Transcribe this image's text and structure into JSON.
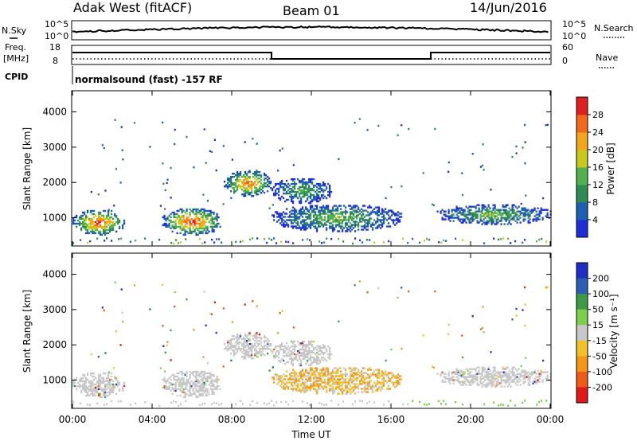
{
  "header": {
    "station": "Adak West (fitACF)",
    "beam": "Beam 01",
    "date": "14/Jun/2016"
  },
  "top_panel": {
    "left_label": "N.Sky",
    "right_label": "N.Search",
    "ticks": [
      "10^5",
      "10^0"
    ]
  },
  "freq_panel": {
    "left_label_1": "Freq.",
    "left_label_2": "[MHz]",
    "left_ticks": [
      "18",
      "8"
    ],
    "right_label": "Nave",
    "right_ticks": [
      "60",
      "0"
    ],
    "cpid_label": "CPID",
    "cpid_text": "normalsound (fast) -157 RF"
  },
  "colors": {
    "power": [
      "#1f2fd6",
      "#1d5fb0",
      "#2f8a55",
      "#53b04f",
      "#c9c81f",
      "#f2a51f",
      "#ef6a1d",
      "#e02020"
    ],
    "velocity": [
      "#e01818",
      "#ef5a16",
      "#f4961c",
      "#f2c12a",
      "#c8c8c8",
      "#7ccf48",
      "#3d9a47",
      "#2c5fb3",
      "#1f2fc6"
    ]
  },
  "chart_data": [
    {
      "type": "heatmap",
      "title": "Power",
      "ylabel": "Slant Range [km]",
      "ylim": [
        200,
        4600
      ],
      "yticks": [
        "1000",
        "2000",
        "3000",
        "4000"
      ],
      "xticks": [
        "00:00",
        "04:00",
        "08:00",
        "12:00",
        "16:00",
        "20:00",
        "00:00"
      ],
      "colorbar": {
        "label": "Power [dB]",
        "ticks": [
          "4",
          "8",
          "12",
          "16",
          "20",
          "24",
          "28"
        ]
      },
      "echo_regions": [
        {
          "t": [
            0.0,
            2.6
          ],
          "range": [
            500,
            1200
          ],
          "peak_db": 30
        },
        {
          "t": [
            4.5,
            7.5
          ],
          "range": [
            500,
            1250
          ],
          "peak_db": 30
        },
        {
          "t": [
            7.6,
            10.0
          ],
          "range": [
            1600,
            2300
          ],
          "peak_db": 28
        },
        {
          "t": [
            10.0,
            13.0
          ],
          "range": [
            1400,
            2100
          ],
          "peak_db": 14
        },
        {
          "t": [
            10.0,
            16.5
          ],
          "range": [
            600,
            1350
          ],
          "peak_db": 16
        },
        {
          "t": [
            18.3,
            24.0
          ],
          "range": [
            800,
            1350
          ],
          "peak_db": 16
        }
      ]
    },
    {
      "type": "heatmap",
      "title": "Velocity",
      "ylabel": "Slant Range [km]",
      "xlabel": "Time UT",
      "ylim": [
        200,
        4600
      ],
      "yticks": [
        "1000",
        "2000",
        "3000",
        "4000"
      ],
      "xticks": [
        "00:00",
        "04:00",
        "08:00",
        "12:00",
        "16:00",
        "20:00",
        "00:00"
      ],
      "colorbar": {
        "label": "Velocity [m s⁻¹]",
        "ticks": [
          "200",
          "100",
          "50",
          "15",
          "-15",
          "-50",
          "-100",
          "-200"
        ]
      }
    }
  ]
}
